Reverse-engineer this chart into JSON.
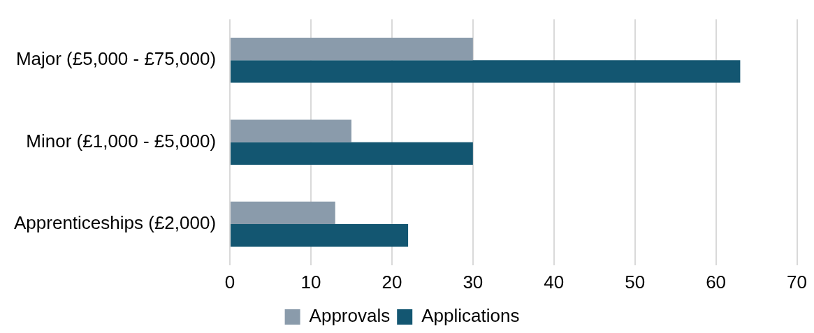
{
  "chart_data": {
    "type": "bar",
    "orientation": "horizontal",
    "categories": [
      "Major (£5,000 - £75,000)",
      "Minor (£1,000 - £5,000)",
      "Apprenticeships (£2,000)"
    ],
    "series": [
      {
        "name": "Approvals",
        "color": "#8a9bab",
        "values": [
          30,
          15,
          13
        ]
      },
      {
        "name": "Applications",
        "color": "#135671",
        "values": [
          63,
          30,
          22
        ]
      }
    ],
    "xlim": [
      0,
      70
    ],
    "xticks": [
      0,
      10,
      20,
      30,
      40,
      50,
      60,
      70
    ],
    "grid": "x",
    "legend": "bottom"
  }
}
